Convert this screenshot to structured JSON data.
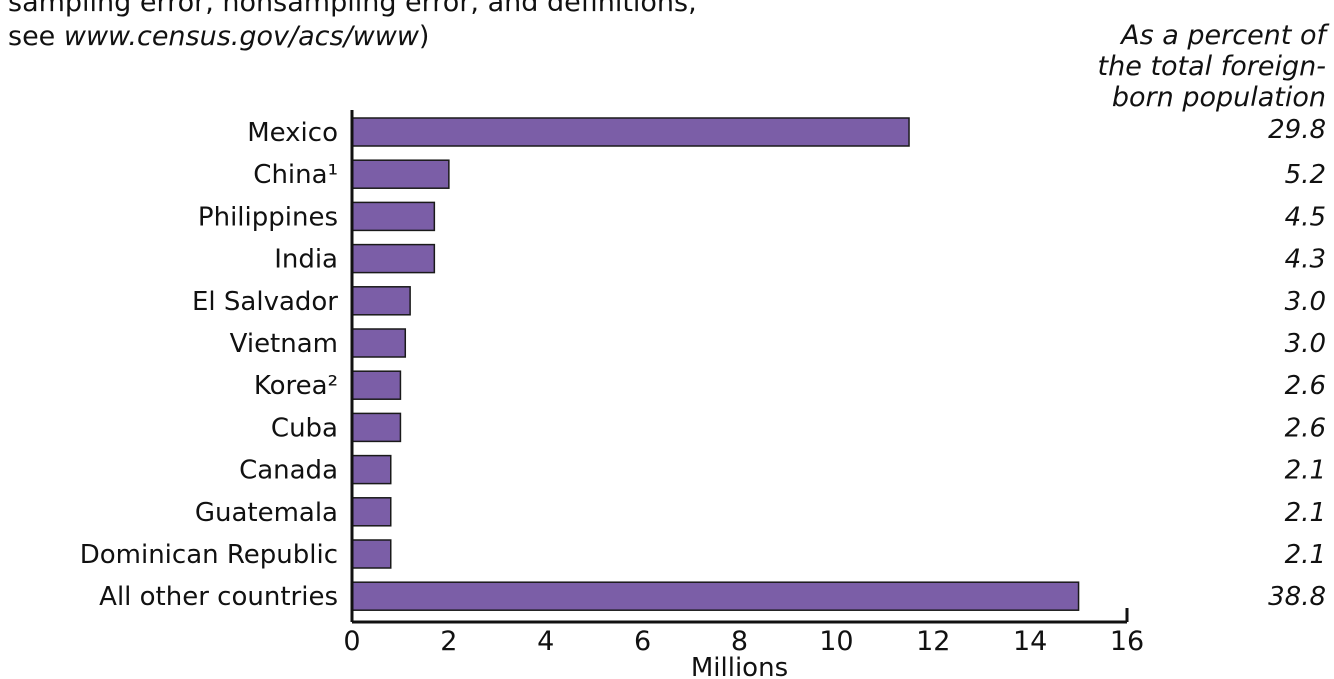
{
  "note": {
    "line1": "sampling error, nonsampling error, and definitions,",
    "line2_prefix": "see ",
    "line2_url": "www.census.gov/acs/www",
    "line2_suffix": ")"
  },
  "percent_header": {
    "line1": "As a percent of",
    "line2": "the total foreign-",
    "line3": "born population"
  },
  "colors": {
    "bar": "#7B5EA7",
    "bar_stroke": "#1a1a1a",
    "axis": "#111111"
  },
  "chart_data": {
    "type": "bar",
    "orientation": "horizontal",
    "categories": [
      "Mexico",
      "China¹",
      "Philippines",
      "India",
      "El Salvador",
      "Vietnam",
      "Korea²",
      "Cuba",
      "Canada",
      "Guatemala",
      "Dominican Republic",
      "All other countries"
    ],
    "values": [
      11.5,
      2.0,
      1.7,
      1.7,
      1.2,
      1.1,
      1.0,
      1.0,
      0.8,
      0.8,
      0.8,
      15.0
    ],
    "percent_labels": [
      "29.8",
      "5.2",
      "4.5",
      "4.3",
      "3.0",
      "3.0",
      "2.6",
      "2.6",
      "2.1",
      "2.1",
      "2.1",
      "38.8"
    ],
    "xlabel": "Millions",
    "xlim": [
      0,
      16
    ],
    "xticks": [
      0,
      2,
      4,
      6,
      8,
      10,
      12,
      14,
      16
    ],
    "grid": false
  }
}
